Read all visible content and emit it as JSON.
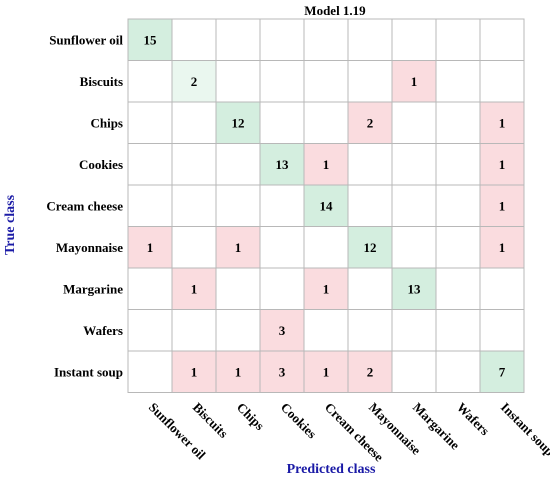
{
  "chart_data": {
    "type": "heatmap",
    "title": "Model 1.19",
    "xlabel": "Predicted class",
    "ylabel": "True class",
    "classes": [
      "Sunflower oil",
      "Biscuits",
      "Chips",
      "Cookies",
      "Cream cheese",
      "Mayonnaise",
      "Margarine",
      "Wafers",
      "Instant soup"
    ],
    "matrix": [
      [
        15,
        0,
        0,
        0,
        0,
        0,
        0,
        0,
        0
      ],
      [
        0,
        2,
        0,
        0,
        0,
        0,
        1,
        0,
        0
      ],
      [
        0,
        0,
        12,
        0,
        0,
        2,
        0,
        0,
        1
      ],
      [
        0,
        0,
        0,
        13,
        1,
        0,
        0,
        0,
        1
      ],
      [
        0,
        0,
        0,
        0,
        14,
        0,
        0,
        0,
        1
      ],
      [
        1,
        0,
        1,
        0,
        0,
        12,
        0,
        0,
        1
      ],
      [
        0,
        1,
        0,
        0,
        1,
        0,
        13,
        0,
        0
      ],
      [
        0,
        0,
        0,
        3,
        0,
        0,
        0,
        0,
        0
      ],
      [
        0,
        1,
        1,
        3,
        1,
        2,
        0,
        0,
        7
      ]
    ],
    "colors": {
      "correct": "#d4eedf",
      "correct_light": "#eaf7ef",
      "error": "#fadcdf",
      "grid": "#b8b8b8",
      "axis_label": "#1a1aa6"
    },
    "grid": true
  }
}
